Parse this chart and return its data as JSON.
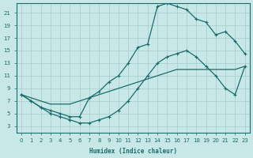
{
  "xlabel": "Humidex (Indice chaleur)",
  "xlim": [
    -0.5,
    23.5
  ],
  "ylim": [
    2,
    22.5
  ],
  "xticks": [
    0,
    1,
    2,
    3,
    4,
    5,
    6,
    7,
    8,
    9,
    10,
    11,
    12,
    13,
    14,
    15,
    16,
    17,
    18,
    19,
    20,
    21,
    22,
    23
  ],
  "yticks": [
    3,
    5,
    7,
    9,
    11,
    13,
    15,
    17,
    19,
    21
  ],
  "bg_color": "#c8e8e8",
  "grid_color": "#a8d0d0",
  "line_color": "#1a6b6b",
  "line1_x": [
    0,
    1,
    2,
    3,
    4,
    5,
    6,
    7,
    8,
    9,
    10,
    11,
    12,
    13,
    14,
    15,
    16,
    17,
    18,
    19,
    20,
    21,
    22,
    23
  ],
  "line1_y": [
    8,
    7,
    6,
    5.5,
    5,
    4.5,
    4.5,
    7.5,
    8.5,
    10,
    11,
    13,
    15.5,
    16,
    22,
    22.5,
    22,
    21.5,
    20,
    19.5,
    17.5,
    18,
    16.5,
    14.5
  ],
  "line1_marker": true,
  "line2_x": [
    0,
    1,
    2,
    3,
    4,
    5,
    6,
    7,
    8,
    9,
    10,
    11,
    12,
    13,
    14,
    15,
    16,
    17,
    18,
    19,
    20,
    21,
    22,
    23
  ],
  "line2_y": [
    8,
    7.5,
    7,
    6.5,
    6.5,
    6.5,
    7,
    7.5,
    8,
    8.5,
    9,
    9.5,
    10,
    10.5,
    11,
    11.5,
    12,
    12,
    12,
    12,
    12,
    12,
    12,
    12.5
  ],
  "line2_marker": false,
  "line3_x": [
    0,
    1,
    2,
    3,
    4,
    5,
    6,
    7,
    8,
    9,
    10,
    11,
    12,
    13,
    14,
    15,
    16,
    17,
    18,
    19,
    20,
    21,
    22,
    23
  ],
  "line3_y": [
    8,
    7,
    6,
    5,
    4.5,
    4,
    3.5,
    3.5,
    4,
    4.5,
    5.5,
    7,
    9,
    11,
    13,
    14,
    14.5,
    15,
    14,
    12.5,
    11,
    9,
    8,
    12.5
  ],
  "line3_marker": true
}
